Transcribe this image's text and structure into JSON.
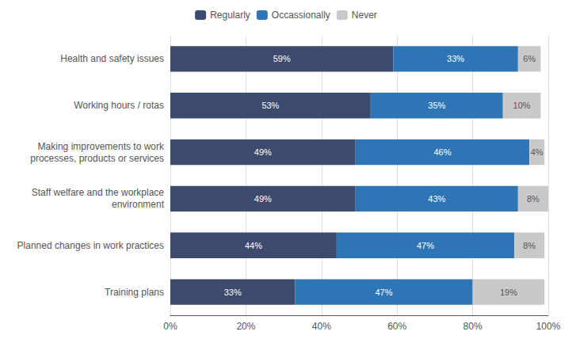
{
  "chart_data": {
    "type": "bar",
    "orientation": "horizontal",
    "stacked": true,
    "data_labels": true,
    "grid": true,
    "legend": "top",
    "categories": [
      "Health and safety issues",
      "Working hours / rotas",
      "Making improvements to work\nprocesses, products or services",
      "Staff welfare and the workplace\nenvironment",
      "Planned changes in work practices",
      "Training plans"
    ],
    "series": [
      {
        "name": "Regularly",
        "color": "#3c4a6e",
        "values": [
          59,
          53,
          49,
          49,
          44,
          33
        ],
        "value_labels": [
          "59%",
          "53%",
          "49%",
          "49%",
          "44%",
          "33%"
        ]
      },
      {
        "name": "Occassionally",
        "color": "#2e75b6",
        "values": [
          33,
          35,
          46,
          43,
          47,
          47
        ],
        "value_labels": [
          "33%",
          "35%",
          "46%",
          "43%",
          "47%",
          "47%"
        ]
      },
      {
        "name": "Never",
        "color": "#c9c9c9",
        "values": [
          6,
          10,
          4,
          8,
          8,
          19
        ],
        "value_labels": [
          "6%",
          "10%",
          "4%",
          "8%",
          "8%",
          "19%"
        ]
      }
    ],
    "xlim": [
      0,
      100
    ],
    "xticks": [
      {
        "value": 0,
        "label": "0%"
      },
      {
        "value": 20,
        "label": "20%"
      },
      {
        "value": 40,
        "label": "40%"
      },
      {
        "value": 60,
        "label": "60%"
      },
      {
        "value": 80,
        "label": "80%"
      },
      {
        "value": 100,
        "label": "100%"
      }
    ]
  }
}
